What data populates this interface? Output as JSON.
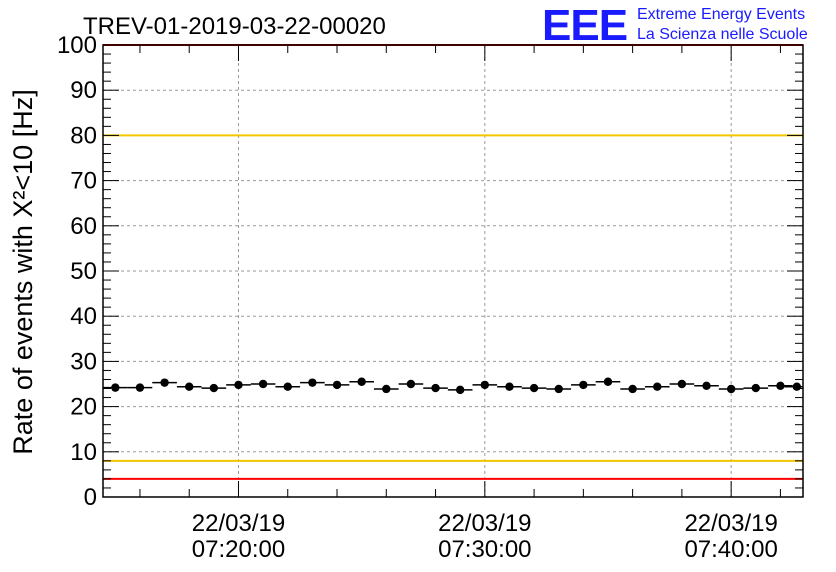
{
  "header": {
    "run_title": "TREV-01-2019-03-22-00020",
    "logo_text": "EEE",
    "logo_line1": "Extreme Energy Events",
    "logo_line2": "La Scienza nelle Scuole"
  },
  "colors": {
    "logo": "#1a1aff",
    "red_limit": "#ff0000",
    "yellow_limit": "#f2c600",
    "points": "#000000",
    "grid": "#999999"
  },
  "chart_data": {
    "type": "scatter",
    "title": "TREV-01-2019-03-22-00020",
    "ylabel": "Rate of events with X²<10 [Hz]",
    "ylim": [
      0,
      100
    ],
    "xlim": [
      "07:14:30",
      "07:42:55"
    ],
    "y_ticks": [
      0,
      10,
      20,
      30,
      40,
      50,
      60,
      70,
      80,
      90,
      100
    ],
    "x_ticks": [
      {
        "date": "22/03/19",
        "time": "07:20:00"
      },
      {
        "date": "22/03/19",
        "time": "07:30:00"
      },
      {
        "date": "22/03/19",
        "time": "07:40:00"
      }
    ],
    "grid": true,
    "reference_lines": [
      {
        "y": 100,
        "color": "#ff0000"
      },
      {
        "y": 80,
        "color": "#f2c600"
      },
      {
        "y": 8,
        "color": "#f2c600"
      },
      {
        "y": 4,
        "color": "#ff0000"
      }
    ],
    "x": [
      "07:15:00",
      "07:16:00",
      "07:17:00",
      "07:18:00",
      "07:19:00",
      "07:20:00",
      "07:21:00",
      "07:22:00",
      "07:23:00",
      "07:24:00",
      "07:25:00",
      "07:26:00",
      "07:27:00",
      "07:28:00",
      "07:29:00",
      "07:30:00",
      "07:31:00",
      "07:32:00",
      "07:33:00",
      "07:34:00",
      "07:35:00",
      "07:36:00",
      "07:37:00",
      "07:38:00",
      "07:39:00",
      "07:40:00",
      "07:41:00",
      "07:42:00",
      "07:42:40"
    ],
    "values": [
      24.2,
      24.2,
      25.3,
      24.4,
      24.1,
      24.8,
      25.0,
      24.4,
      25.3,
      24.8,
      25.5,
      23.9,
      25.0,
      24.1,
      23.7,
      24.8,
      24.4,
      24.1,
      23.9,
      24.8,
      25.5,
      23.9,
      24.4,
      25.0,
      24.6,
      23.9,
      24.1,
      24.6,
      24.4
    ]
  }
}
